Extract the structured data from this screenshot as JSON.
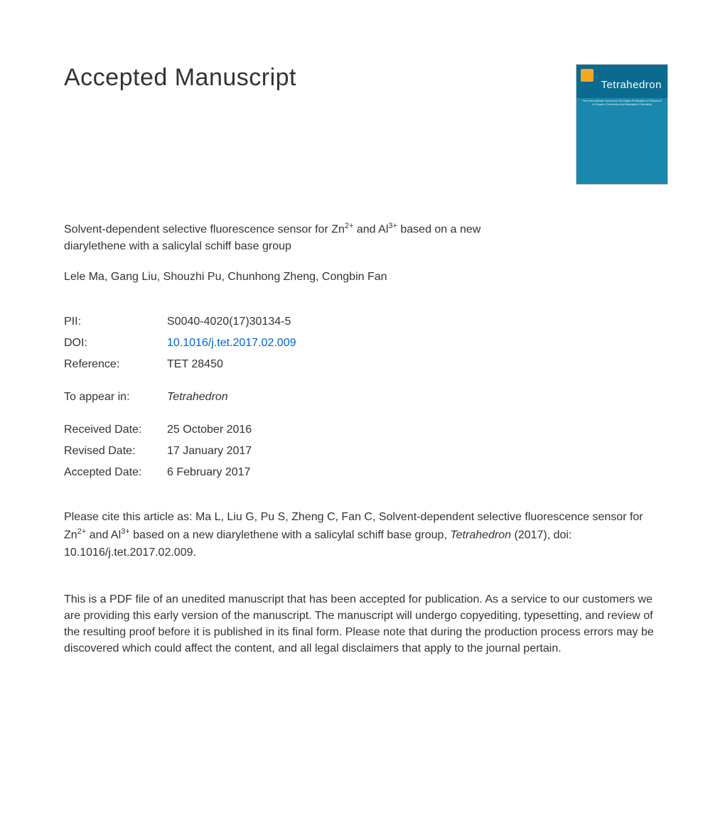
{
  "heading": "Accepted Manuscript",
  "journal_cover": {
    "title": "Tetrahedron",
    "subtitle": "The International Journal for the Rapid Publication of Research in Organic Chemistry and Bioorganic Chemistry"
  },
  "article": {
    "title_pre": "Solvent-dependent selective fluorescence sensor for Zn",
    "sup1": "2+",
    "title_mid": " and Al",
    "sup2": "3+",
    "title_post": " based on a new diarylethene with a salicylal schiff base group",
    "authors": "Lele Ma, Gang Liu, Shouzhi Pu, Chunhong Zheng, Congbin Fan"
  },
  "meta": {
    "pii_label": "PII:",
    "pii_value": "S0040-4020(17)30134-5",
    "doi_label": "DOI:",
    "doi_value": "10.1016/j.tet.2017.02.009",
    "ref_label": "Reference:",
    "ref_value": "TET 28450",
    "appear_label": "To appear in:",
    "appear_value": "Tetrahedron",
    "received_label": "Received Date:",
    "received_value": "25 October 2016",
    "revised_label": "Revised Date:",
    "revised_value": "17 January 2017",
    "accepted_label": "Accepted Date:",
    "accepted_value": "6 February 2017"
  },
  "citation": {
    "pre": "Please cite this article as: Ma L, Liu G, Pu S, Zheng C, Fan C, Solvent-dependent selective fluorescence sensor for Zn",
    "sup1": "2+",
    "mid": " and Al",
    "sup2": "3+",
    "post1": " based on a new diarylethene with a salicylal schiff base group, ",
    "journal": "Tetrahedron",
    "post2": " (2017), doi: 10.1016/j.tet.2017.02.009."
  },
  "disclaimer": "This is a PDF file of an unedited manuscript that has been accepted for publication. As a service to our customers we are providing this early version of the manuscript. The manuscript will undergo copyediting, typesetting, and review of the resulting proof before it is published in its final form. Please note that during the production process errors may be discovered which could affect the content, and all legal disclaimers that apply to the journal pertain.",
  "colors": {
    "text": "#333333",
    "link": "#0066cc",
    "cover_top": "#0a6b8f",
    "cover_body": "#1a88ad",
    "cover_logo": "#f5a623",
    "background": "#ffffff"
  },
  "typography": {
    "heading_fontsize": 34,
    "body_fontsize": 16,
    "sup_fontsize": 11,
    "font_family": "Arial, Helvetica, sans-serif"
  }
}
